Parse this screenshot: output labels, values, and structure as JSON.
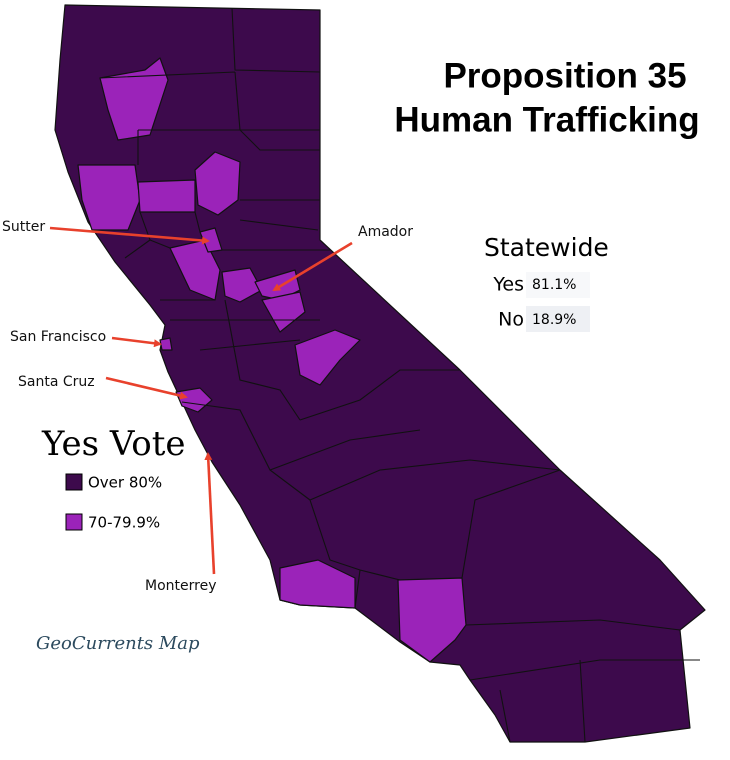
{
  "title": {
    "line1": "Proposition 35",
    "line2": "Human Trafficking"
  },
  "statewide": {
    "heading": "Statewide",
    "rows": [
      {
        "label": "Yes",
        "value": "81.1%"
      },
      {
        "label": "No",
        "value": "18.9%"
      }
    ]
  },
  "legend": {
    "title": "Yes Vote",
    "items": [
      {
        "label": "Over 80%",
        "color": "#3d0a4c"
      },
      {
        "label": "70-79.9%",
        "color": "#9b23b9"
      }
    ]
  },
  "annotations": [
    "Sutter",
    "Amador",
    "San Francisco",
    "Santa Cruz",
    "Monterrey"
  ],
  "credit": "GeoCurrents Map"
}
